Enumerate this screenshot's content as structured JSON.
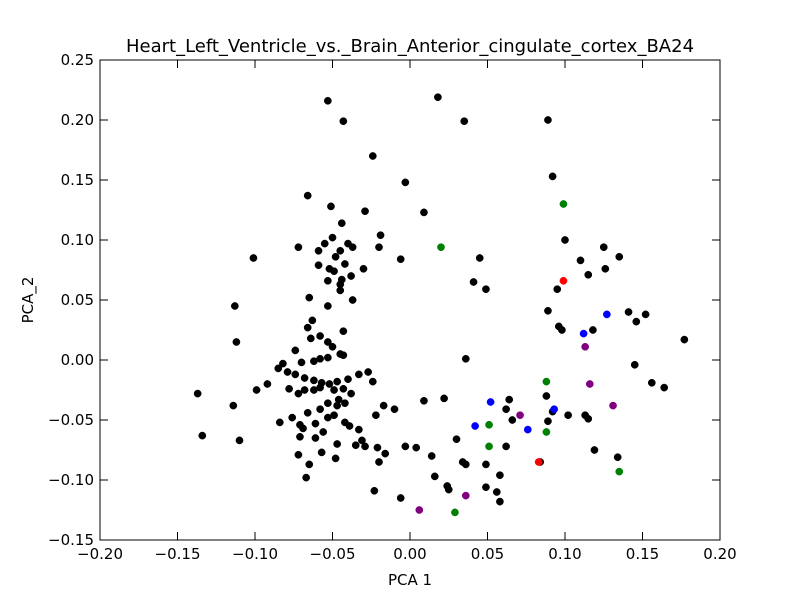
{
  "chart_data": {
    "type": "scatter",
    "title": "Heart_Left_Ventricle_vs._Brain_Anterior_cingulate_cortex_BA24",
    "xlabel": "PCA 1",
    "ylabel": "PCA_2",
    "xlim": [
      -0.2,
      0.2
    ],
    "ylim": [
      -0.15,
      0.25
    ],
    "xticks": [
      -0.2,
      -0.15,
      -0.1,
      -0.05,
      0.0,
      0.05,
      0.1,
      0.15,
      0.2
    ],
    "yticks": [
      -0.15,
      -0.1,
      -0.05,
      0.0,
      0.05,
      0.1,
      0.15,
      0.2,
      0.25
    ],
    "xtick_labels": [
      "−0.20",
      "−0.15",
      "−0.10",
      "−0.05",
      "0.00",
      "0.05",
      "0.10",
      "0.15",
      "0.20"
    ],
    "ytick_labels": [
      "−0.15",
      "−0.10",
      "−0.05",
      "0.00",
      "0.05",
      "0.10",
      "0.15",
      "0.20",
      "0.25"
    ],
    "grid": false,
    "series": [
      {
        "color": "#000000",
        "points": [
          [
            -0.053,
            0.216
          ],
          [
            -0.043,
            0.199
          ],
          [
            0.018,
            0.219
          ],
          [
            0.035,
            0.199
          ],
          [
            0.089,
            0.2
          ],
          [
            -0.024,
            0.17
          ],
          [
            -0.003,
            0.148
          ],
          [
            0.092,
            0.153
          ],
          [
            -0.066,
            0.137
          ],
          [
            -0.051,
            0.128
          ],
          [
            -0.029,
            0.124
          ],
          [
            0.009,
            0.123
          ],
          [
            -0.101,
            0.085
          ],
          [
            -0.072,
            0.094
          ],
          [
            -0.059,
            0.091
          ],
          [
            -0.044,
            0.114
          ],
          [
            -0.05,
            0.102
          ],
          [
            -0.055,
            0.097
          ],
          [
            -0.04,
            0.097
          ],
          [
            -0.037,
            0.094
          ],
          [
            -0.045,
            0.091
          ],
          [
            -0.019,
            0.104
          ],
          [
            -0.02,
            0.094
          ],
          [
            -0.03,
            0.076
          ],
          [
            -0.006,
            0.084
          ],
          [
            -0.048,
            0.086
          ],
          [
            -0.042,
            0.08
          ],
          [
            -0.052,
            0.076
          ],
          [
            -0.059,
            0.079
          ],
          [
            -0.049,
            0.074
          ],
          [
            -0.044,
            0.067
          ],
          [
            -0.038,
            0.07
          ],
          [
            -0.053,
            0.066
          ],
          [
            -0.045,
            0.063
          ],
          [
            -0.045,
            0.058
          ],
          [
            -0.037,
            0.05
          ],
          [
            -0.053,
            0.045
          ],
          [
            -0.065,
            0.052
          ],
          [
            -0.063,
            0.033
          ],
          [
            -0.066,
            0.027
          ],
          [
            -0.058,
            0.02
          ],
          [
            -0.064,
            0.018
          ],
          [
            -0.043,
            0.024
          ],
          [
            -0.113,
            0.045
          ],
          [
            -0.112,
            0.015
          ],
          [
            -0.074,
            0.008
          ],
          [
            -0.053,
            0.015
          ],
          [
            -0.05,
            0.011
          ],
          [
            -0.045,
            0.005
          ],
          [
            -0.043,
            0.004
          ],
          [
            -0.053,
            0.002
          ],
          [
            -0.058,
            0.001
          ],
          [
            -0.062,
            -0.001
          ],
          [
            -0.07,
            -0.002
          ],
          [
            -0.082,
            -0.003
          ],
          [
            -0.085,
            -0.007
          ],
          [
            -0.079,
            -0.01
          ],
          [
            -0.074,
            -0.012
          ],
          [
            -0.068,
            -0.015
          ],
          [
            -0.062,
            -0.017
          ],
          [
            -0.057,
            -0.019
          ],
          [
            -0.052,
            -0.02
          ],
          [
            -0.047,
            -0.018
          ],
          [
            -0.04,
            -0.016
          ],
          [
            -0.033,
            -0.012
          ],
          [
            -0.027,
            -0.01
          ],
          [
            -0.024,
            -0.018
          ],
          [
            -0.092,
            -0.02
          ],
          [
            -0.099,
            -0.025
          ],
          [
            -0.078,
            -0.024
          ],
          [
            -0.072,
            -0.028
          ],
          [
            -0.068,
            -0.025
          ],
          [
            -0.062,
            -0.025
          ],
          [
            -0.058,
            -0.023
          ],
          [
            -0.049,
            -0.025
          ],
          [
            -0.043,
            -0.024
          ],
          [
            -0.038,
            -0.028
          ],
          [
            -0.046,
            -0.033
          ],
          [
            -0.053,
            -0.036
          ],
          [
            -0.058,
            -0.041
          ],
          [
            -0.047,
            -0.038
          ],
          [
            -0.042,
            -0.036
          ],
          [
            -0.049,
            -0.046
          ],
          [
            -0.053,
            -0.048
          ],
          [
            -0.066,
            -0.044
          ],
          [
            -0.076,
            -0.048
          ],
          [
            -0.084,
            -0.052
          ],
          [
            -0.071,
            -0.054
          ],
          [
            -0.069,
            -0.057
          ],
          [
            -0.061,
            -0.053
          ],
          [
            -0.056,
            -0.06
          ],
          [
            -0.061,
            -0.065
          ],
          [
            -0.071,
            -0.064
          ],
          [
            -0.042,
            -0.052
          ],
          [
            -0.039,
            -0.055
          ],
          [
            -0.033,
            -0.058
          ],
          [
            -0.031,
            -0.067
          ],
          [
            -0.029,
            -0.072
          ],
          [
            -0.021,
            -0.073
          ],
          [
            -0.016,
            -0.078
          ],
          [
            -0.02,
            -0.085
          ],
          [
            -0.035,
            -0.071
          ],
          [
            -0.047,
            -0.07
          ],
          [
            -0.048,
            -0.082
          ],
          [
            -0.057,
            -0.077
          ],
          [
            -0.065,
            -0.087
          ],
          [
            -0.072,
            -0.079
          ],
          [
            -0.067,
            -0.098
          ],
          [
            -0.022,
            -0.046
          ],
          [
            -0.017,
            -0.038
          ],
          [
            -0.01,
            -0.041
          ],
          [
            0.009,
            -0.034
          ],
          [
            0.022,
            -0.032
          ],
          [
            -0.003,
            -0.072
          ],
          [
            0.004,
            -0.073
          ],
          [
            0.014,
            -0.08
          ],
          [
            0.03,
            -0.066
          ],
          [
            0.036,
            -0.087
          ],
          [
            0.034,
            -0.085
          ],
          [
            0.049,
            -0.087
          ],
          [
            0.062,
            -0.072
          ],
          [
            0.016,
            -0.097
          ],
          [
            0.024,
            -0.105
          ],
          [
            0.025,
            -0.108
          ],
          [
            -0.023,
            -0.109
          ],
          [
            -0.006,
            -0.115
          ],
          [
            0.049,
            -0.106
          ],
          [
            0.056,
            -0.11
          ],
          [
            0.058,
            -0.118
          ],
          [
            0.058,
            -0.096
          ],
          [
            0.036,
            0.001
          ],
          [
            0.041,
            0.065
          ],
          [
            0.045,
            0.085
          ],
          [
            0.049,
            0.059
          ],
          [
            0.064,
            -0.033
          ],
          [
            0.066,
            -0.05
          ],
          [
            0.062,
            -0.041
          ],
          [
            0.084,
            -0.085
          ],
          [
            0.089,
            -0.051
          ],
          [
            0.092,
            -0.043
          ],
          [
            0.088,
            -0.03
          ],
          [
            0.089,
            0.041
          ],
          [
            0.095,
            0.059
          ],
          [
            0.1,
            0.1
          ],
          [
            0.102,
            -0.046
          ],
          [
            0.096,
            0.028
          ],
          [
            0.098,
            0.025
          ],
          [
            0.11,
            0.083
          ],
          [
            0.113,
            -0.046
          ],
          [
            0.115,
            -0.049
          ],
          [
            0.115,
            0.071
          ],
          [
            0.118,
            0.025
          ],
          [
            0.119,
            -0.075
          ],
          [
            0.126,
            0.076
          ],
          [
            0.125,
            0.094
          ],
          [
            0.134,
            -0.081
          ],
          [
            0.135,
            0.086
          ],
          [
            0.141,
            0.04
          ],
          [
            0.146,
            0.032
          ],
          [
            0.145,
            -0.004
          ],
          [
            0.152,
            0.038
          ],
          [
            0.156,
            -0.019
          ],
          [
            0.164,
            -0.023
          ],
          [
            0.177,
            0.017
          ],
          [
            -0.137,
            -0.028
          ],
          [
            -0.134,
            -0.063
          ],
          [
            -0.114,
            -0.038
          ],
          [
            -0.11,
            -0.067
          ]
        ]
      },
      {
        "color": "#008000",
        "points": [
          [
            0.02,
            0.094
          ],
          [
            0.099,
            0.13
          ],
          [
            0.088,
            -0.018
          ],
          [
            0.051,
            -0.054
          ],
          [
            0.051,
            -0.072
          ],
          [
            0.088,
            -0.06
          ],
          [
            0.135,
            -0.093
          ],
          [
            0.029,
            -0.127
          ]
        ]
      },
      {
        "color": "#0000ff",
        "points": [
          [
            0.052,
            -0.035
          ],
          [
            0.042,
            -0.055
          ],
          [
            0.076,
            -0.058
          ],
          [
            0.093,
            -0.041
          ],
          [
            0.112,
            0.022
          ],
          [
            0.127,
            0.038
          ]
        ]
      },
      {
        "color": "#800080",
        "points": [
          [
            0.071,
            -0.046
          ],
          [
            0.113,
            0.011
          ],
          [
            0.116,
            -0.02
          ],
          [
            0.131,
            -0.038
          ],
          [
            0.036,
            -0.113
          ],
          [
            0.006,
            -0.125
          ]
        ]
      },
      {
        "color": "#ff0000",
        "points": [
          [
            0.099,
            0.066
          ],
          [
            0.083,
            -0.085
          ]
        ]
      }
    ]
  }
}
